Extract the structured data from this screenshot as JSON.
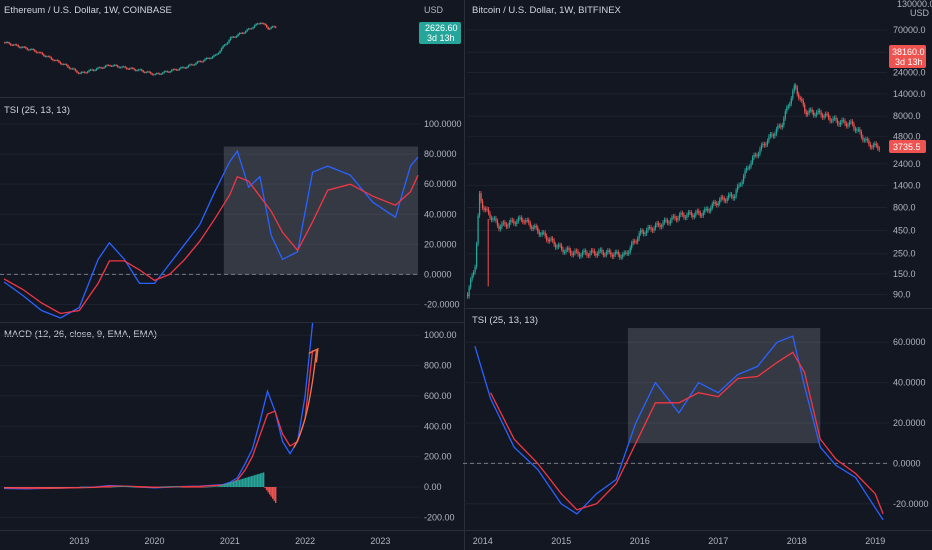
{
  "left": {
    "price_title": "Ethereum / U.S. Dollar, 1W, COINBASE",
    "price_axis_unit": "USD",
    "price_badge": {
      "value": "2626.60",
      "sub": "3d 13h",
      "color": "#26a69a"
    },
    "tsi_title": "TSI (25, 13, 13)",
    "macd_title": "MACD (12, 26, close, 9, EMA, EMA)",
    "x_ticks": [
      "2019",
      "2020",
      "2021",
      "2022",
      "2023"
    ]
  },
  "right": {
    "price_title": "Bitcoin / U.S. Dollar, 1W, BITFINEX",
    "price_axis_unit": "USD",
    "price_axis_top": "130000.0",
    "price_badge": {
      "value": "38160.0",
      "sub": "3d 13h",
      "color": "#ef5350"
    },
    "second_badge": {
      "value": "3735.5",
      "color": "#ef5350"
    },
    "tsi_title": "TSI (25, 13, 13)",
    "x_ticks": [
      "2014",
      "2015",
      "2016",
      "2017",
      "2018",
      "2019"
    ]
  },
  "colors": {
    "background": "#131722",
    "up": "#26a69a",
    "down": "#ef5350",
    "tsi": "#2962ff",
    "signal": "#f23645",
    "arrow": "#f7734b",
    "grid": "#1e222d"
  },
  "chart_data": [
    {
      "type": "line",
      "title": "TSI (25, 13, 13)",
      "panel": "Ethereum TSI",
      "yticks": [
        "100.0000",
        "80.0000",
        "60.0000",
        "40.0000",
        "20.0000",
        "0.0000",
        "-20.0000"
      ],
      "ylim": [
        -25,
        108
      ],
      "x": [
        2018.0,
        2018.25,
        2018.5,
        2018.75,
        2019.0,
        2019.25,
        2019.4,
        2019.6,
        2019.8,
        2020.0,
        2020.2,
        2020.4,
        2020.6,
        2020.8,
        2021.0,
        2021.1,
        2021.25,
        2021.4,
        2021.55,
        2021.7,
        2021.9,
        2022.1,
        2022.3,
        2022.6,
        2022.9,
        2023.2,
        2023.4,
        2023.5
      ],
      "series": [
        {
          "values": [
            -5,
            -14,
            -24,
            -29,
            -22,
            10,
            21,
            10,
            -6,
            -6,
            7,
            20,
            33,
            55,
            75,
            82,
            58,
            65,
            26,
            10,
            15,
            68,
            72,
            66,
            48,
            38,
            72,
            78
          ]
        },
        {
          "values": [
            -3,
            -10,
            -19,
            -26,
            -24,
            -6,
            9,
            9,
            3,
            -4,
            0,
            10,
            22,
            37,
            53,
            65,
            62,
            52,
            42,
            28,
            16,
            35,
            56,
            60,
            52,
            46,
            55,
            66
          ]
        }
      ],
      "highlight": {
        "x": [
          2020.92,
          2023.5
        ],
        "y": [
          0,
          85
        ]
      }
    },
    {
      "type": "line",
      "title": "MACD (12, 26, close, 9, EMA, EMA)",
      "panel": "Ethereum MACD",
      "yticks": [
        "1000.00",
        "800.00",
        "600.00",
        "400.00",
        "200.00",
        "0.00",
        "-200.00"
      ],
      "ylim": [
        -270,
        1080
      ],
      "x": [
        2018.0,
        2018.3,
        2018.6,
        2018.9,
        2019.2,
        2019.4,
        2019.6,
        2019.8,
        2020.0,
        2020.3,
        2020.6,
        2020.9,
        2021.0,
        2021.1,
        2021.2,
        2021.3,
        2021.4,
        2021.5,
        2021.6,
        2021.7,
        2021.8,
        2021.9,
        2022.0,
        2022.1
      ],
      "series": [
        {
          "values": [
            -10,
            -12,
            -8,
            -5,
            0,
            10,
            5,
            0,
            -5,
            2,
            5,
            15,
            30,
            60,
            150,
            250,
            430,
            630,
            500,
            300,
            220,
            300,
            600,
            1080
          ]
        },
        {
          "values": [
            -5,
            -8,
            -8,
            -6,
            -2,
            5,
            5,
            2,
            -2,
            1,
            4,
            12,
            22,
            45,
            110,
            200,
            340,
            480,
            500,
            350,
            270,
            300,
            450,
            900
          ]
        }
      ],
      "histogram_visible": true
    },
    {
      "type": "line",
      "title": "TSI (25, 13, 13)",
      "panel": "Bitcoin TSI",
      "yticks": [
        "60.0000",
        "40.0000",
        "20.0000",
        "0.0000",
        "-20.0000"
      ],
      "ylim": [
        -32,
        70
      ],
      "x": [
        2013.9,
        2014.1,
        2014.4,
        2014.7,
        2015.0,
        2015.2,
        2015.45,
        2015.7,
        2015.95,
        2016.2,
        2016.5,
        2016.75,
        2017.0,
        2017.25,
        2017.5,
        2017.75,
        2017.95,
        2018.1,
        2018.3,
        2018.5,
        2018.75,
        2019.0,
        2019.1
      ],
      "series": [
        {
          "values": [
            58,
            32,
            8,
            -3,
            -20,
            -25,
            -15,
            -8,
            20,
            40,
            25,
            40,
            35,
            44,
            48,
            60,
            63,
            38,
            8,
            -1,
            -7,
            -22,
            -28
          ]
        },
        {
          "values": [
            null,
            35,
            12,
            0,
            -15,
            -23,
            -20,
            -10,
            10,
            30,
            30,
            35,
            33,
            42,
            43,
            50,
            55,
            45,
            12,
            2,
            -5,
            -15,
            -25
          ]
        }
      ],
      "highlight": {
        "x": [
          2015.85,
          2018.3
        ],
        "y": [
          10,
          67
        ]
      }
    },
    {
      "type": "candlestick",
      "title": "Bitcoin / U.S. Dollar, 1W, BITFINEX",
      "panel": "Bitcoin price",
      "scale": "log",
      "yticks": [
        "70000.0",
        "40000.0",
        "24000.0",
        "14000.0",
        "8000.0",
        "4800.0",
        "2400.0",
        "1400.0",
        "800.0",
        "450.0",
        "250.0",
        "150.0",
        "90.0"
      ],
      "x": [
        2013.8,
        2013.9,
        2013.95,
        2014.0,
        2014.2,
        2014.5,
        2014.8,
        2015.0,
        2015.2,
        2015.5,
        2015.8,
        2016.0,
        2016.5,
        2016.8,
        2017.0,
        2017.2,
        2017.4,
        2017.6,
        2017.8,
        2017.97,
        2018.1,
        2018.3,
        2018.5,
        2018.7,
        2018.9,
        2019.0
      ],
      "values": [
        90,
        200,
        1100,
        800,
        500,
        600,
        380,
        280,
        250,
        260,
        240,
        420,
        650,
        700,
        950,
        1100,
        2500,
        4200,
        6500,
        17000,
        9000,
        8500,
        7000,
        6500,
        4000,
        3700
      ]
    },
    {
      "type": "candlestick",
      "title": "Ethereum / U.S. Dollar, 1W, COINBASE",
      "panel": "Ethereum price",
      "x": [
        2018.0,
        2018.4,
        2018.8,
        2019.0,
        2019.4,
        2019.8,
        2020.0,
        2020.4,
        2020.8,
        2021.0,
        2021.2,
        2021.4,
        2021.5,
        2021.6
      ],
      "values": [
        1000,
        600,
        250,
        150,
        250,
        180,
        140,
        220,
        450,
        1300,
        2000,
        3500,
        2400,
        2626.6
      ]
    }
  ]
}
